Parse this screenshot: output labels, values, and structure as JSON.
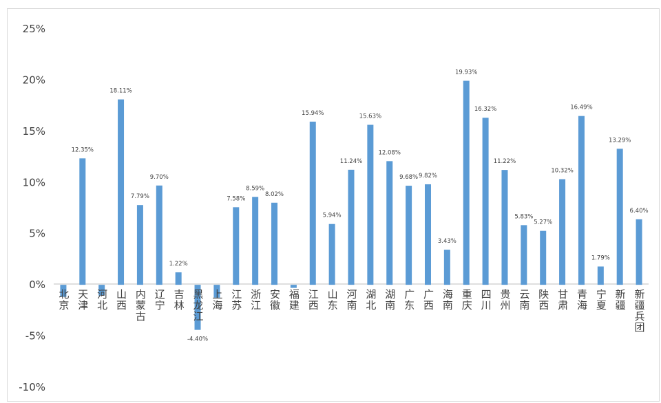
{
  "chart_data": {
    "type": "bar",
    "title": "",
    "xlabel": "",
    "ylabel": "",
    "ylim": [
      -0.1,
      0.25
    ],
    "yticks": [
      -0.1,
      -0.05,
      0,
      0.05,
      0.1,
      0.15,
      0.2,
      0.25
    ],
    "ytick_labels": [
      "-10%",
      "-5%",
      "0%",
      "5%",
      "10%",
      "15%",
      "20%",
      "25%"
    ],
    "grid": false,
    "legend": "none",
    "bar_color": "#5b9bd5",
    "categories": [
      "北京",
      "天津",
      "河北",
      "山西",
      "内蒙古",
      "辽宁",
      "吉林",
      "黑龙江",
      "上海",
      "江苏",
      "浙江",
      "安徽",
      "福建",
      "江西",
      "山东",
      "河南",
      "湖北",
      "湖南",
      "广东",
      "广西",
      "海南",
      "重庆",
      "四川",
      "贵州",
      "云南",
      "陕西",
      "甘肃",
      "青海",
      "宁夏",
      "新疆",
      "新疆兵团"
    ],
    "values": [
      -0.0118,
      0.1235,
      -0.0105,
      0.1811,
      0.0779,
      0.097,
      0.0122,
      -0.044,
      -0.0125,
      0.0758,
      0.0859,
      0.0802,
      -0.003,
      0.1594,
      0.0594,
      0.1124,
      0.1563,
      0.1208,
      0.0968,
      0.0982,
      0.0343,
      0.1993,
      0.1632,
      0.1122,
      0.0583,
      0.0527,
      0.1032,
      0.1649,
      0.0179,
      0.1329,
      0.064
    ],
    "data_labels": [
      "",
      "12.35%",
      "",
      "18.11%",
      "7.79%",
      "9.70%",
      "1.22%",
      "-4.40%",
      "",
      "7.58%",
      "8.59%",
      "8.02%",
      "",
      "15.94%",
      "5.94%",
      "11.24%",
      "15.63%",
      "12.08%",
      "9.68%",
      "9.82%",
      "3.43%",
      "19.93%",
      "16.32%",
      "11.22%",
      "5.83%",
      "5.27%",
      "10.32%",
      "16.49%",
      "1.79%",
      "13.29%",
      "6.40%"
    ]
  }
}
